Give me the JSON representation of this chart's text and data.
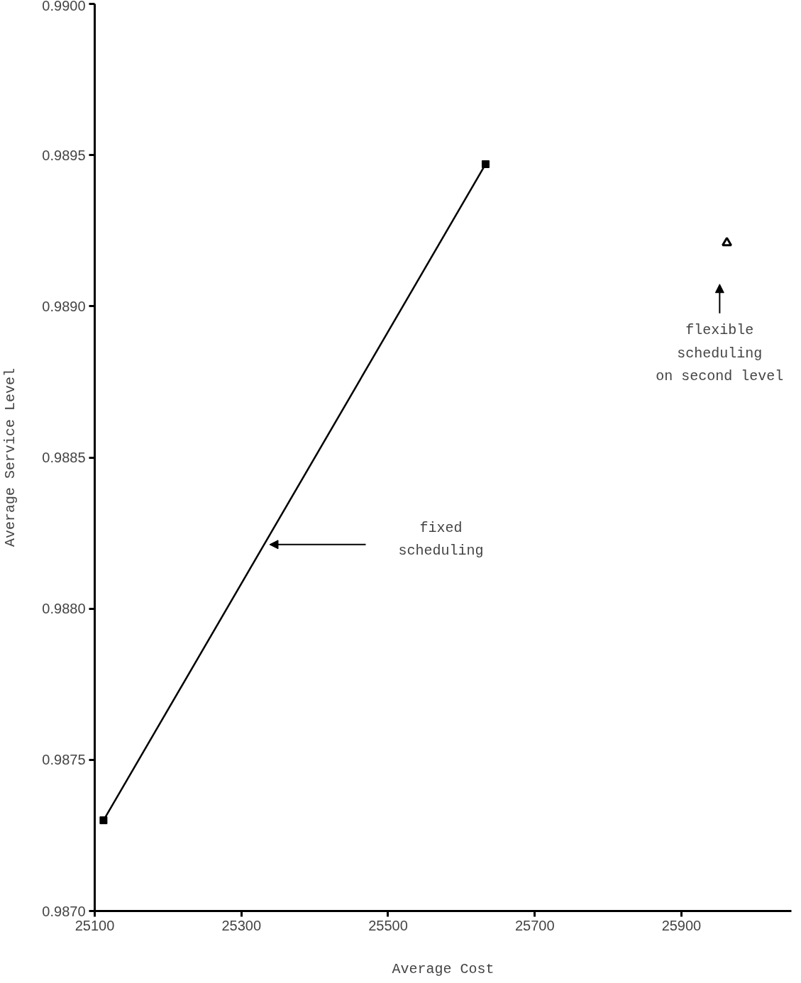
{
  "chart_data": {
    "type": "line",
    "xlabel": "Average Cost",
    "ylabel": "Average Service Level",
    "xlim": [
      25100,
      26050
    ],
    "xticks": [
      25100,
      25300,
      25500,
      25700,
      25900
    ],
    "ylim": [
      0.987,
      0.99
    ],
    "yticks": [
      {
        "value": 0.987,
        "label": "0.9870"
      },
      {
        "value": 0.9875,
        "label": "0.9875"
      },
      {
        "value": 0.988,
        "label": "0.9880"
      },
      {
        "value": 0.9885,
        "label": "0.9885"
      },
      {
        "value": 0.989,
        "label": "0.9890"
      },
      {
        "value": 0.9895,
        "label": "0.9895"
      },
      {
        "value": 0.99,
        "label": "0.9900"
      }
    ],
    "grid": false,
    "series": [
      {
        "color": "#000000",
        "marker": "square",
        "x": [
          25112,
          25633
        ],
        "values": [
          0.9873,
          0.98947
        ]
      },
      {
        "type": "scatter",
        "color": "#000000",
        "marker": "triangle",
        "x": [
          25962
        ],
        "values": [
          0.98921
        ]
      }
    ],
    "annotations": [
      "fixed\nscheduling",
      "flexible\nscheduling\non second level"
    ]
  }
}
